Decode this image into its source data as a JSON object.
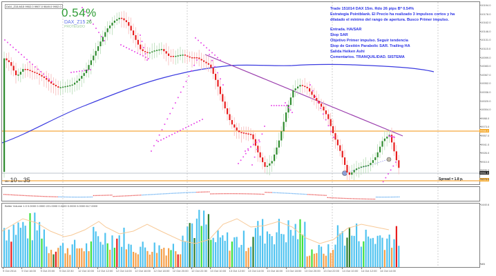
{
  "window": {
    "symbol_label": "DAX_Z15,M15  9902.0 9907.0 9849.0 9902.0"
  },
  "overlay": {
    "profit_pct": "0.54%",
    "symbol": "DAX_Z15",
    "pips": "26",
    "status": "PROTEGIDO"
  },
  "notes": {
    "line1": "Trade 151014 DAX 15m. Rdo 26 pips Bº 0.54%",
    "line2": "Estrategia Pointblank. El Precio ha realizado 3 impulsos cortos y ha",
    "line3": "dilatado el mínimo del rango de apertura. Busco Primer  impulso.",
    "line4": "Entrada. HA/SAR",
    "line5": "Stop SAR",
    "line6": "Objetivo Primer impulso. Seguir tendencia",
    "line7": "Stop de Gestión Parabolic SAR. Trailing HA",
    "line8": "Salida Heiken Ashi",
    "line9": "Comentarios. TRANQUILIDAD. SISTEMA"
  },
  "timer": {
    "min_label": "Min",
    "min_value": "10",
    "sec_label": "Sec",
    "sec_value": "35"
  },
  "spread": "Spread = 1.8 p.",
  "price_axis": {
    "ticks": [
      "10194.0",
      "10178.0",
      "10162.0",
      "10146.0",
      "10131.0",
      "10115.0",
      "10099.0",
      "10083.0",
      "10067.0",
      "10052.0",
      "10036.0",
      "10020.0",
      "10004.0",
      "9988.0",
      "9973.0",
      "9957.0",
      "9941.0",
      "9926.0",
      "9910.0",
      "9895.0",
      "9879.0"
    ],
    "tag_upper": "9988.0",
    "tag_current": "9951.5",
    "tag_lower": "9944.5",
    "colors": {
      "orange": "#f5a623",
      "current": "#222222"
    }
  },
  "volume_panel": {
    "label": "Better Volume 1.0 0.0000 0.0000 221.0000 0.0000 0.0000 0.0000 617.0000",
    "axis_top": "1440.6",
    "axis_bottom": "MB"
  },
  "time_axis": {
    "labels": [
      "9 Oct 2014",
      "9 Oct 16:00",
      "9 Oct 20:00",
      "9 Oct 22:30",
      "12 Oct 10:00",
      "12 Oct 12:00",
      "12 Oct 14:00",
      "12 Oct 16:00",
      "12 Oct 18:00",
      "12 Oct 20:00",
      "12 Oct 22:30",
      "13 Oct 10:00",
      "13 Oct 12:00",
      "13 Oct 14:00",
      "13 Oct 16:00",
      "13 Oct 18:00",
      "13 Oct 20:00",
      "13 Oct 22:00",
      "14 Oct 10:00",
      "14 Oct 12:00",
      "14 Oct 14:00"
    ]
  },
  "colors": {
    "bull": "#2e8b2e",
    "bear": "#e81d1d",
    "sar": "#e84ae8",
    "ma": "#3a3ae0",
    "trendline": "#9b3fae",
    "level": "#f7b65e",
    "vol_blue": "#4fc3f0",
    "vol_orange": "#f5a04a",
    "vol_green": "#3fe03f",
    "vol_dkgreen": "#2e7d2e",
    "vol_red": "#e81d1d"
  }
}
